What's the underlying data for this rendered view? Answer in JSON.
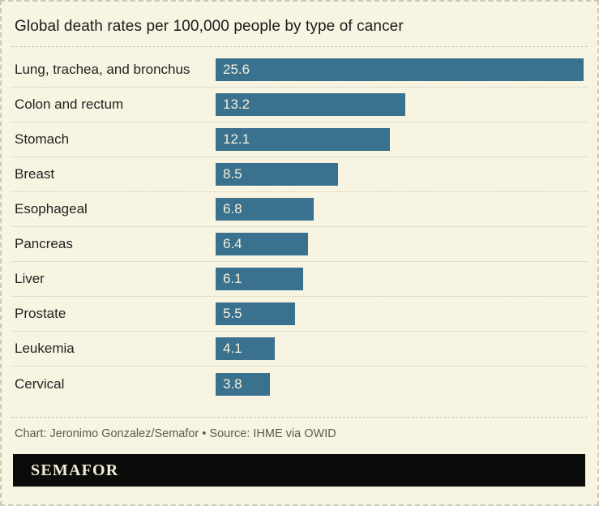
{
  "header": {
    "title": "Global death rates per 100,000 people by type of cancer"
  },
  "chart_data": {
    "type": "bar",
    "orientation": "horizontal",
    "title": "Global death rates per 100,000 people by type of cancer",
    "categories": [
      "Lung, trachea, and bronchus",
      "Colon and rectum",
      "Stomach",
      "Breast",
      "Esophageal",
      "Pancreas",
      "Liver",
      "Prostate",
      "Leukemia",
      "Cervical"
    ],
    "values": [
      25.6,
      13.2,
      12.1,
      8.5,
      6.8,
      6.4,
      6.1,
      5.5,
      4.1,
      3.8
    ],
    "xlabel": "",
    "ylabel": "",
    "xlim": [
      0,
      25.6
    ],
    "grid": false,
    "legend": false,
    "value_labels": "inside-bar-start"
  },
  "footer": {
    "credit": "Chart: Jeronimo Gonzalez/Semafor • Source: IHME via OWID",
    "logo": "SEMAFOR"
  },
  "colors": {
    "background": "#f8f4e2",
    "bar": "#39718e",
    "bar_value_text": "#f6f1dd",
    "title_text": "#1b1b1b",
    "label_text": "#222220",
    "credit_text": "#5b5a50",
    "logo_bg": "#0b0b09",
    "logo_text": "#f3ecd7"
  }
}
